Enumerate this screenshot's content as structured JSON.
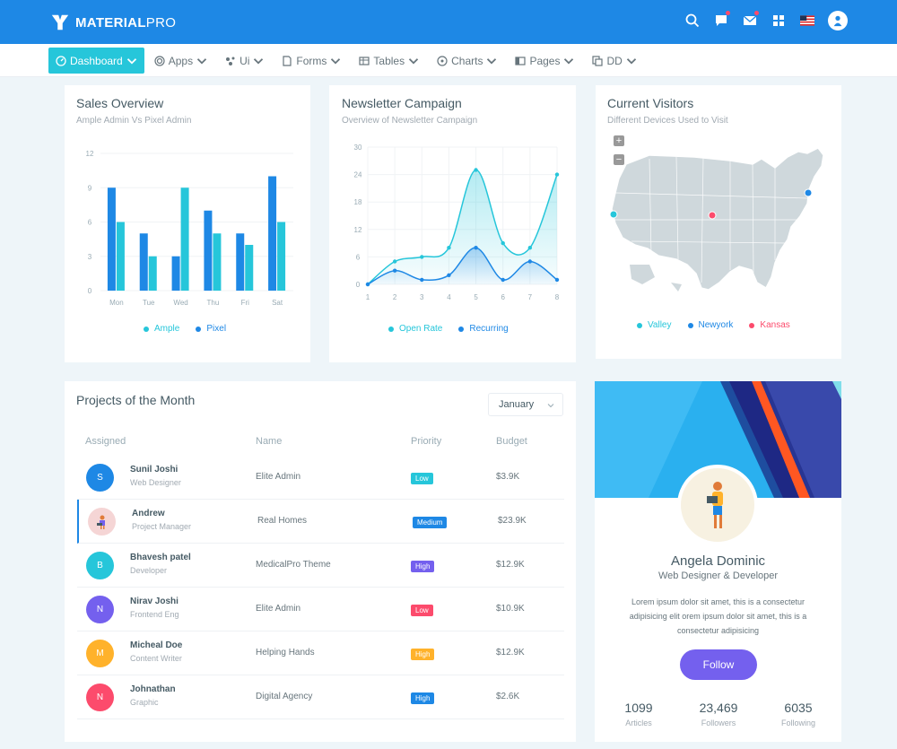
{
  "brand": {
    "name_bold": "MATERIAL",
    "name_light": "PRO"
  },
  "topbar": {
    "icons": [
      "search-icon",
      "message-icon",
      "mail-icon",
      "grid-icon",
      "us-flag-icon",
      "user-avatar"
    ]
  },
  "nav": [
    {
      "label": "Dashboard",
      "icon": "dashboard-icon"
    },
    {
      "label": "Apps",
      "icon": "apps-icon"
    },
    {
      "label": "Ui",
      "icon": "ui-icon"
    },
    {
      "label": "Forms",
      "icon": "forms-icon"
    },
    {
      "label": "Tables",
      "icon": "tables-icon"
    },
    {
      "label": "Charts",
      "icon": "charts-icon"
    },
    {
      "label": "Pages",
      "icon": "pages-icon"
    },
    {
      "label": "DD",
      "icon": "dd-icon"
    }
  ],
  "sales": {
    "title": "Sales Overview",
    "subtitle": "Ample Admin Vs Pixel Admin"
  },
  "newsletter": {
    "title": "Newsletter Campaign",
    "subtitle": "Overview of Newsletter Campaign"
  },
  "visitors": {
    "title": "Current Visitors",
    "subtitle": "Different Devices Used to Visit",
    "zoom_in": "+",
    "zoom_out": "−",
    "legend": [
      {
        "name": "Valley",
        "color": "#26c6da"
      },
      {
        "name": "Newyork",
        "color": "#1e88e5"
      },
      {
        "name": "Kansas",
        "color": "#fc4b6c"
      }
    ]
  },
  "chart_data": [
    {
      "type": "bar",
      "categories": [
        "Mon",
        "Tue",
        "Wed",
        "Thu",
        "Fri",
        "Sat"
      ],
      "series": [
        {
          "name": "Ample",
          "color": "#26c6da",
          "values": [
            6,
            3,
            9,
            5,
            4,
            6
          ]
        },
        {
          "name": "Pixel",
          "color": "#1e88e5",
          "values": [
            9,
            5,
            3,
            7,
            5,
            10
          ]
        }
      ],
      "ylim": [
        0,
        12
      ],
      "yticks": [
        "0",
        "3",
        "6",
        "9",
        "12"
      ]
    },
    {
      "type": "line",
      "x": [
        1,
        2,
        3,
        4,
        5,
        6,
        7,
        8
      ],
      "xticks": [
        "1",
        "2",
        "3",
        "4",
        "5",
        "6",
        "7",
        "8"
      ],
      "series": [
        {
          "name": "Open Rate",
          "color": "#26c6da",
          "values": [
            0,
            5,
            6,
            8,
            25,
            9,
            8,
            24
          ]
        },
        {
          "name": "Recurring",
          "color": "#1e88e5",
          "values": [
            0,
            3,
            1,
            2,
            8,
            1,
            5,
            1
          ]
        }
      ],
      "ylim": [
        0,
        30
      ],
      "yticks": [
        "0",
        "6",
        "12",
        "18",
        "24",
        "30"
      ]
    }
  ],
  "projects": {
    "title": "Projects of the Month",
    "month": "January",
    "headers": {
      "assigned": "Assigned",
      "name": "Name",
      "priority": "Priority",
      "budget": "Budget"
    },
    "rows": [
      {
        "initial": "S",
        "color": "#1e88e5",
        "user": "Sunil Joshi",
        "role": "Web Designer",
        "project": "Elite Admin",
        "priority": "Low",
        "pcolor": "#26c6da",
        "budget": "$3.9K"
      },
      {
        "initial": "",
        "color": "#f5d5d5",
        "user": "Andrew",
        "role": "Project Manager",
        "project": "Real Homes",
        "priority": "Medium",
        "pcolor": "#1e88e5",
        "budget": "$23.9K"
      },
      {
        "initial": "B",
        "color": "#26c6da",
        "user": "Bhavesh patel",
        "role": "Developer",
        "project": "MedicalPro Theme",
        "priority": "High",
        "pcolor": "#7460ee",
        "budget": "$12.9K"
      },
      {
        "initial": "N",
        "color": "#7460ee",
        "user": "Nirav Joshi",
        "role": "Frontend Eng",
        "project": "Elite Admin",
        "priority": "Low",
        "pcolor": "#fc4b6c",
        "budget": "$10.9K"
      },
      {
        "initial": "M",
        "color": "#ffb22b",
        "user": "Micheal Doe",
        "role": "Content Writer",
        "project": "Helping Hands",
        "priority": "High",
        "pcolor": "#ffb22b",
        "budget": "$12.9K"
      },
      {
        "initial": "N",
        "color": "#fc4b6c",
        "user": "Johnathan",
        "role": "Graphic",
        "project": "Digital Agency",
        "priority": "High",
        "pcolor": "#1e88e5",
        "budget": "$2.6K"
      }
    ]
  },
  "profile": {
    "name": "Angela Dominic",
    "role": "Web Designer & Developer",
    "bio": "Lorem ipsum dolor sit amet, this is a consectetur adipisicing elit orem ipsum dolor sit amet, this is a consectetur adipisicing",
    "follow_label": "Follow",
    "stats": [
      {
        "value": "1099",
        "label": "Articles"
      },
      {
        "value": "23,469",
        "label": "Followers"
      },
      {
        "value": "6035",
        "label": "Following"
      }
    ]
  }
}
